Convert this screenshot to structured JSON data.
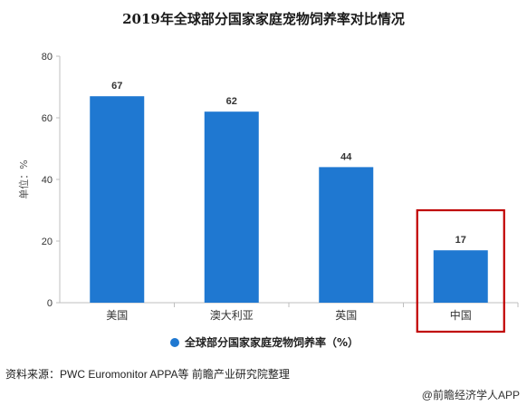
{
  "chart_data": {
    "type": "bar",
    "title": "2019年全球部分国家家庭宠物饲养率对比情况",
    "categories": [
      "美国",
      "澳大利亚",
      "英国",
      "中国"
    ],
    "series": [
      {
        "name": "全球部分国家家庭宠物饲养率（%）",
        "values": [
          67,
          62,
          44,
          17
        ]
      }
    ],
    "ylabel": "单位：%",
    "ylim": [
      0,
      80
    ],
    "yticks": [
      0,
      20,
      40,
      60,
      80
    ],
    "grid": false,
    "legend": "bottom",
    "bar_color": "#1f78d1",
    "highlight_category": "中国",
    "highlight_color": "#c00000"
  },
  "footer": {
    "source": "资料来源：PWC Euromonitor APPA等 前瞻产业研究院整理",
    "brand": "@前瞻经济学人APP"
  }
}
